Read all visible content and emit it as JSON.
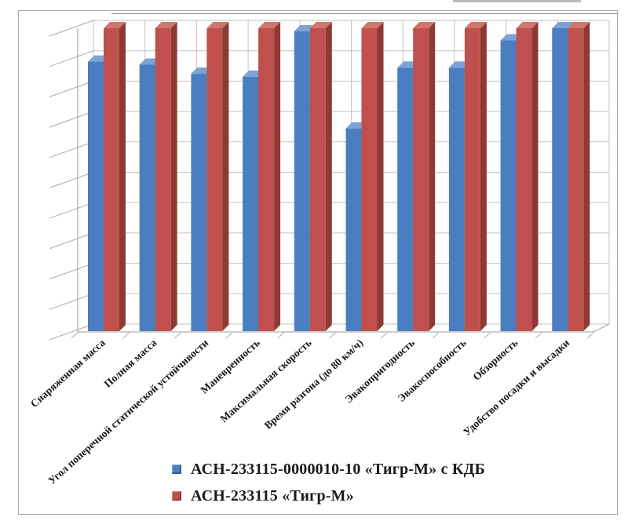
{
  "page": {
    "background": "#ffffff",
    "frame_color": "#a7a7a7"
  },
  "chart_data": {
    "type": "bar",
    "style": "3d-clustered-column",
    "title": "",
    "xlabel": "",
    "ylabel": "",
    "ylim": [
      0,
      1
    ],
    "y_tick_count": 10,
    "y_tick_labels_visible": false,
    "grid": true,
    "legend_position": "bottom-center",
    "categories": [
      "Снаряженная масса",
      "Полная масса",
      "Угол поперечной статической устойчивости",
      "Маневренность",
      "Максимальная скорость",
      "Время разгона (до 80 км/ч)",
      "Эвакопригодность",
      "Эвакоспособность",
      "Обзорность",
      "Удобство посадки и высадки"
    ],
    "series": [
      {
        "name": "АСН-233115-0000010-10 «Тигр-М» с КДБ",
        "color": "#4a7ec0",
        "color_top": "#7da3d6",
        "color_side": "#35598c",
        "values": [
          0.89,
          0.88,
          0.85,
          0.84,
          0.99,
          0.67,
          0.87,
          0.87,
          0.96,
          1.0
        ]
      },
      {
        "name": "АСН-233115 «Тигр-М»",
        "color": "#c0504d",
        "color_top": "#d0766f",
        "color_side": "#8e3a34",
        "values": [
          1.0,
          1.0,
          1.0,
          1.0,
          1.0,
          1.0,
          1.0,
          1.0,
          1.0,
          1.0
        ]
      }
    ],
    "gridline_color": "#c3c3c3",
    "tick_color": "#ababab",
    "axis_color": "#9b9b9b",
    "category_label_color": "#161616"
  }
}
